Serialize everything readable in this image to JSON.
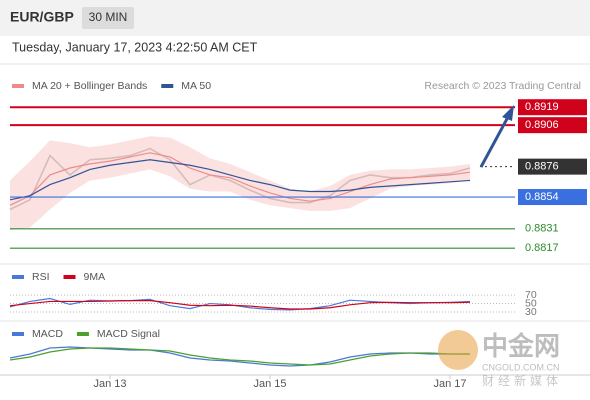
{
  "header": {
    "symbol": "EUR/GBP",
    "timeframe": "30 MIN",
    "datetime": "Tuesday, January 17, 2023 4:22:50 AM CET",
    "credit": "Research © 2023 Trading Central"
  },
  "watermark": {
    "name": "中金网",
    "site": "CNGOLD.COM.CN",
    "tagline": "财经新媒体"
  },
  "chart_data": [
    {
      "type": "line",
      "categories": [
        null,
        null,
        null,
        null,
        null,
        "Jan 13",
        null,
        null,
        null,
        null,
        null,
        null,
        null,
        "Jan 15",
        null,
        null,
        null,
        null,
        null,
        null,
        null,
        null,
        "Jan 17",
        null
      ],
      "ylim": [
        0.8807,
        0.893
      ],
      "series": [
        {
          "color": "#444444",
          "values": [
            0.8845,
            0.8852,
            0.8884,
            0.887,
            0.8881,
            0.8882,
            0.8884,
            0.8889,
            0.8881,
            0.8863,
            0.887,
            0.8866,
            0.8859,
            0.8853,
            0.885,
            0.885,
            0.8855,
            0.8866,
            0.887,
            0.8868,
            0.8868,
            0.887,
            0.8871,
            0.8875
          ]
        },
        {
          "name": "MA 20 + Bollinger Bands",
          "color": "#f08a8a",
          "band_color": "#fbd9d9",
          "values": [
            0.8848,
            0.8855,
            0.887,
            0.8875,
            0.8878,
            0.888,
            0.8883,
            0.8886,
            0.8883,
            0.8875,
            0.887,
            0.8868,
            0.8862,
            0.8857,
            0.8853,
            0.8851,
            0.8853,
            0.8858,
            0.8863,
            0.8867,
            0.8868,
            0.8869,
            0.887,
            0.8872
          ],
          "upper": [
            0.8866,
            0.888,
            0.8895,
            0.8893,
            0.889,
            0.8892,
            0.8895,
            0.8898,
            0.8897,
            0.889,
            0.8882,
            0.8878,
            0.8872,
            0.8866,
            0.886,
            0.8858,
            0.8862,
            0.887,
            0.8873,
            0.8874,
            0.8874,
            0.8875,
            0.8876,
            0.8878
          ],
          "lower": [
            0.883,
            0.8832,
            0.8845,
            0.8857,
            0.8866,
            0.8868,
            0.8871,
            0.8874,
            0.8869,
            0.886,
            0.8858,
            0.8858,
            0.8852,
            0.8848,
            0.8846,
            0.8844,
            0.8844,
            0.8846,
            0.8853,
            0.886,
            0.8862,
            0.8863,
            0.8864,
            0.8866
          ]
        },
        {
          "name": "MA 50",
          "color": "#2f5597",
          "values": [
            0.8852,
            0.8855,
            0.8863,
            0.8868,
            0.8874,
            0.8877,
            0.8879,
            0.8881,
            0.8879,
            0.8877,
            0.8874,
            0.887,
            0.8866,
            0.8863,
            0.8859,
            0.8858,
            0.8858,
            0.8859,
            0.8861,
            0.8862,
            0.8863,
            0.8864,
            0.8865,
            0.8866
          ]
        }
      ],
      "levels": [
        {
          "value": 0.8919,
          "color": "#d0021b",
          "style": "solid",
          "box": true
        },
        {
          "value": 0.8906,
          "color": "#d0021b",
          "style": "solid",
          "box": true
        },
        {
          "value": 0.8876,
          "color": "#333333",
          "style": "dotted",
          "box": true
        },
        {
          "value": 0.8854,
          "color": "#3a6fe0",
          "style": "solid",
          "box": true
        },
        {
          "value": 0.8831,
          "color": "#2e8b2e",
          "style": "solid",
          "box": false
        },
        {
          "value": 0.8817,
          "color": "#2e8b2e",
          "style": "solid",
          "box": false
        }
      ]
    },
    {
      "type": "line",
      "ylim": [
        11,
        94
      ],
      "yticks": [
        70,
        50,
        30
      ],
      "series": [
        {
          "name": "RSI",
          "color": "#4a78d8",
          "values": [
            42,
            55,
            62,
            48,
            58,
            56,
            57,
            60,
            45,
            38,
            50,
            47,
            40,
            36,
            35,
            38,
            45,
            58,
            55,
            52,
            50,
            52,
            53,
            55
          ]
        },
        {
          "name": "9MA",
          "color": "#d0021b",
          "values": [
            45,
            50,
            55,
            55,
            55,
            56,
            57,
            57,
            52,
            46,
            45,
            46,
            44,
            40,
            37,
            37,
            40,
            47,
            52,
            53,
            52,
            52,
            52,
            53
          ]
        }
      ]
    },
    {
      "type": "line",
      "ylim": [
        -0.0016,
        0.0016
      ],
      "series": [
        {
          "name": "MACD",
          "color": "#4a78d8",
          "values": [
            -0.0002,
            0.0002,
            0.0008,
            0.0009,
            0.0008,
            0.0007,
            0.0006,
            0.0006,
            0.0003,
            -0.0002,
            -0.0004,
            -0.0005,
            -0.0007,
            -0.0009,
            -0.001,
            -0.0009,
            -0.0006,
            -0.0001,
            0.0002,
            0.0003,
            0.0003,
            0.0002,
            0.0002,
            0.0002
          ]
        },
        {
          "name": "MACD Signal",
          "color": "#4aa02c",
          "values": [
            -0.0004,
            -0.0001,
            0.0004,
            0.0007,
            0.0008,
            0.0008,
            0.0007,
            0.0006,
            0.0005,
            0.0001,
            -0.0002,
            -0.0004,
            -0.0005,
            -0.0007,
            -0.0008,
            -0.0009,
            -0.0008,
            -0.0004,
            0,
            0.0002,
            0.0003,
            0.0003,
            0.0002,
            0.0002
          ]
        }
      ]
    }
  ]
}
